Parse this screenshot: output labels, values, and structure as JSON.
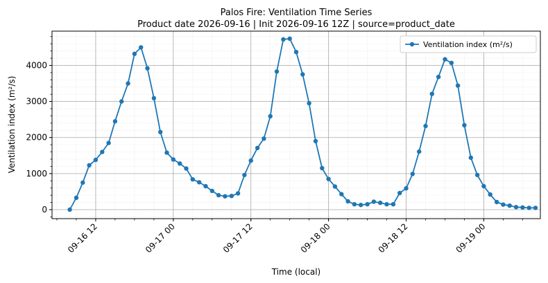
{
  "chart_data": {
    "type": "line",
    "title": "Palos Fire: Ventilation Time Series",
    "subtitle": "Product date 2026-09-16 | Init 2026-09-16 12Z | source=product_date",
    "xlabel": "Time (local)",
    "ylabel": "Ventilation index (m²/s)",
    "x_start": "2026-09-16 08:00",
    "x_step_hours": 1,
    "xlim": [
      "2026-09-16 05:15",
      "2026-09-19 08:45"
    ],
    "ylim": [
      -250,
      4950
    ],
    "x_ticks": [
      {
        "label": "09-16 12",
        "time": "2026-09-16 12:00"
      },
      {
        "label": "09-17 00",
        "time": "2026-09-17 00:00"
      },
      {
        "label": "09-17 12",
        "time": "2026-09-17 12:00"
      },
      {
        "label": "09-18 00",
        "time": "2026-09-18 00:00"
      },
      {
        "label": "09-18 12",
        "time": "2026-09-18 12:00"
      },
      {
        "label": "09-19 00",
        "time": "2026-09-19 00:00"
      }
    ],
    "y_ticks": [
      0,
      1000,
      2000,
      3000,
      4000
    ],
    "grid": true,
    "legend_position": "top-right",
    "series": [
      {
        "name": "Ventilation index (m²/s)",
        "color": "#1f77b4",
        "values": [
          0,
          330,
          750,
          1230,
          1380,
          1600,
          1850,
          2450,
          3000,
          3500,
          4320,
          4500,
          3920,
          3090,
          2150,
          1580,
          1390,
          1280,
          1140,
          840,
          760,
          650,
          520,
          400,
          370,
          380,
          450,
          960,
          1360,
          1710,
          1970,
          2590,
          3830,
          4720,
          4740,
          4370,
          3750,
          2950,
          1900,
          1150,
          850,
          640,
          430,
          230,
          150,
          130,
          150,
          220,
          190,
          150,
          150,
          460,
          590,
          990,
          1610,
          2320,
          3210,
          3680,
          4170,
          4070,
          3440,
          2340,
          1440,
          960,
          650,
          420,
          210,
          140,
          110,
          70,
          60,
          50,
          50
        ]
      }
    ]
  }
}
